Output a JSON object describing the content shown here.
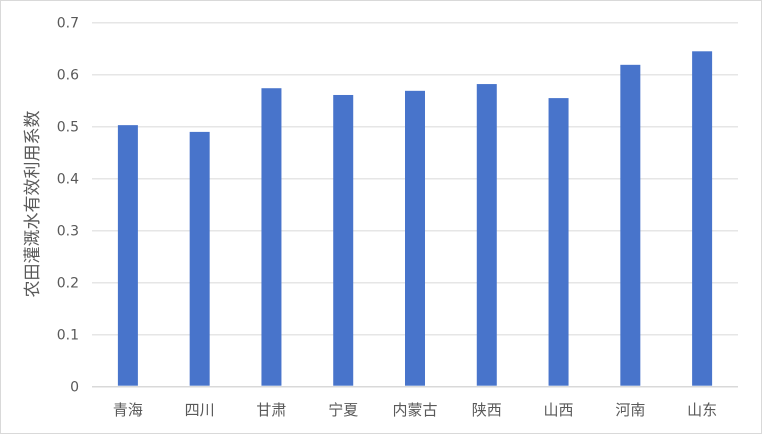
{
  "chart_data": {
    "type": "bar",
    "title": "",
    "xlabel": "",
    "ylabel": "农田灌溉水有效利用系数",
    "categories": [
      "青海",
      "四川",
      "甘肃",
      "宁夏",
      "内蒙古",
      "陕西",
      "山西",
      "河南",
      "山东"
    ],
    "values": [
      0.503,
      0.49,
      0.574,
      0.561,
      0.569,
      0.582,
      0.555,
      0.619,
      0.645
    ],
    "ylim": [
      0,
      0.7
    ],
    "yticks": [
      "0",
      "0.1",
      "0.2",
      "0.3",
      "0.4",
      "0.5",
      "0.6",
      "0.7"
    ],
    "grid": true,
    "legend": "none",
    "colors": {
      "bar": "#4874CB",
      "grid": "#E6E6E6",
      "text": "#595959"
    }
  }
}
